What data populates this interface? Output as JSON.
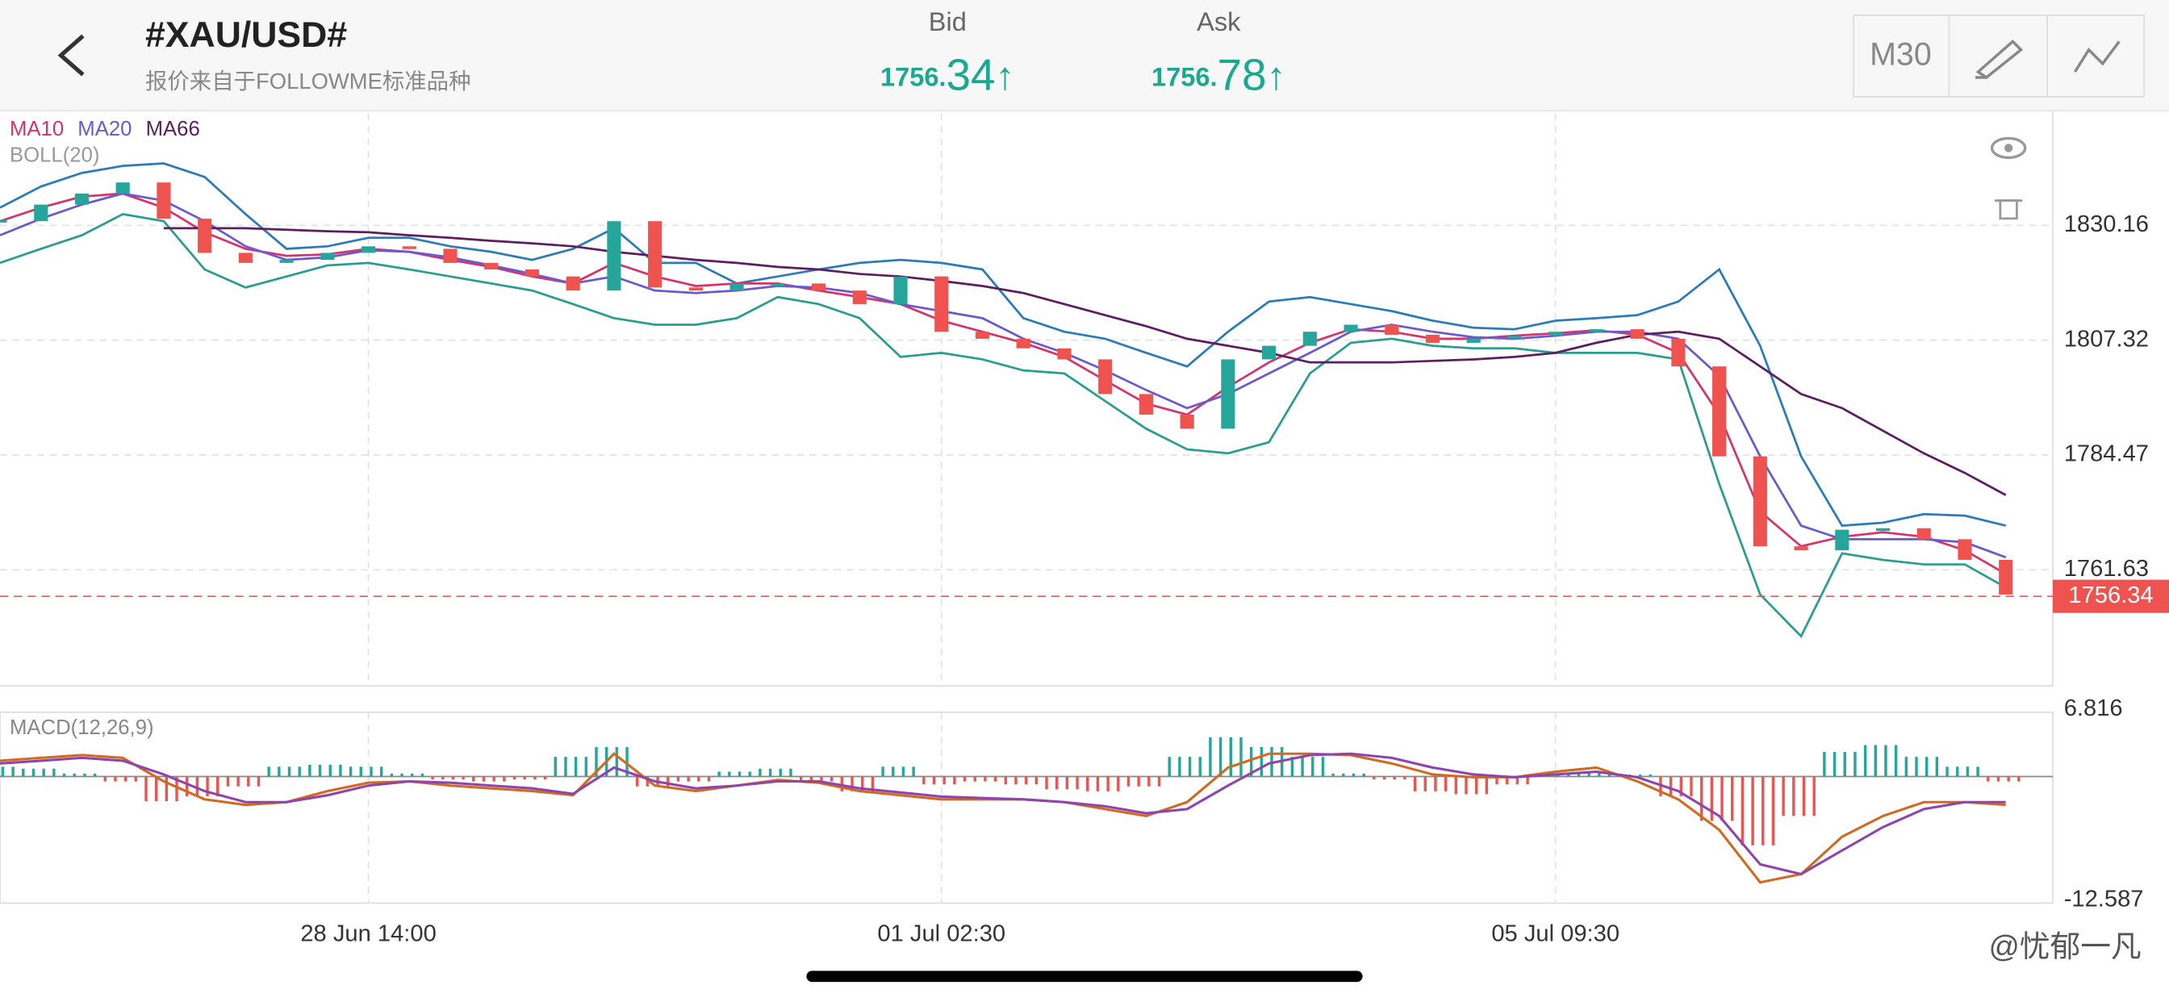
{
  "header": {
    "symbol": "#XAU/USD#",
    "subtitle": "报价来自于FOLLOWME标准品种",
    "bid": {
      "label": "Bid",
      "price_head": "1756.",
      "price_tail": "34",
      "arrow": "↑"
    },
    "ask": {
      "label": "Ask",
      "price_head": "1756.",
      "price_tail": "78",
      "arrow": "↑"
    },
    "timeframe": "M30"
  },
  "watermark": "@忧郁一凡",
  "chart_data": [
    {
      "type": "candlestick",
      "up_color": "#26a69a",
      "down_color": "#ef5350",
      "values": [
        1831.0,
        1834.3,
        1836.5,
        1838.7,
        1831.5,
        1824.7,
        1822.7,
        1823.3,
        1824.7,
        1826.0,
        1825.5,
        1822.7,
        1821.4,
        1820.0,
        1817.2,
        1831.0,
        1817.8,
        1817.2,
        1818.6,
        1818.6,
        1817.2,
        1814.5,
        1820.0,
        1809.0,
        1807.6,
        1805.7,
        1803.5,
        1796.6,
        1792.5,
        1789.7,
        1803.5,
        1806.2,
        1809.0,
        1810.4,
        1808.4,
        1806.8,
        1807.6,
        1808.2,
        1809.0,
        1809.5,
        1807.6,
        1802.1,
        1784.2,
        1766.3,
        1765.5,
        1769.6,
        1769.9,
        1767.7,
        1763.6,
        1756.7
      ],
      "series": [
        {
          "name": "MA10",
          "color": "#d6336c",
          "values": [
            1831.0,
            1833.7,
            1835.9,
            1836.5,
            1833.7,
            1828.8,
            1825.5,
            1824.1,
            1824.4,
            1825.5,
            1824.9,
            1823.3,
            1821.9,
            1820.0,
            1818.6,
            1822.7,
            1820.0,
            1818.1,
            1818.6,
            1818.6,
            1817.2,
            1815.9,
            1814.5,
            1811.2,
            1809.0,
            1806.8,
            1804.0,
            1799.3,
            1794.7,
            1792.5,
            1798.0,
            1802.9,
            1806.8,
            1809.5,
            1809.0,
            1807.6,
            1807.6,
            1808.2,
            1808.7,
            1809.3,
            1808.4,
            1804.8,
            1792.5,
            1773.2,
            1766.3,
            1768.2,
            1769.1,
            1768.2,
            1765.5,
            1760.8
          ]
        },
        {
          "name": "MA20",
          "color": "#6a5acd",
          "values": [
            1828.2,
            1831.5,
            1834.3,
            1836.5,
            1835.1,
            1831.0,
            1826.0,
            1823.3,
            1823.8,
            1825.2,
            1824.9,
            1823.8,
            1822.2,
            1820.5,
            1818.6,
            1820.0,
            1817.2,
            1816.7,
            1817.2,
            1818.1,
            1817.8,
            1816.7,
            1814.5,
            1813.1,
            1811.7,
            1807.6,
            1804.8,
            1801.3,
            1797.4,
            1793.8,
            1796.6,
            1800.7,
            1804.8,
            1809.0,
            1810.4,
            1809.0,
            1807.9,
            1807.6,
            1808.2,
            1809.0,
            1809.0,
            1807.6,
            1800.2,
            1784.2,
            1770.4,
            1767.7,
            1767.7,
            1767.7,
            1767.1,
            1764.1
          ]
        },
        {
          "name": "MA66",
          "color": "#5b1e5e",
          "values": [
            null,
            null,
            null,
            null,
            1829.6,
            1829.6,
            1829.6,
            1829.3,
            1829.0,
            1828.8,
            1828.2,
            1827.7,
            1827.1,
            1826.6,
            1826.0,
            1824.9,
            1824.1,
            1823.3,
            1822.7,
            1821.9,
            1821.4,
            1820.5,
            1820.0,
            1819.1,
            1818.1,
            1816.7,
            1814.5,
            1812.3,
            1810.1,
            1807.6,
            1806.2,
            1804.8,
            1802.9,
            1802.9,
            1802.9,
            1803.2,
            1803.5,
            1804.0,
            1804.8,
            1806.8,
            1808.4,
            1809.0,
            1807.6,
            1802.1,
            1796.6,
            1793.8,
            1789.3,
            1784.8,
            1780.9,
            1776.5
          ]
        }
      ],
      "bands": {
        "name": "BOLL(20)",
        "color": "#999999",
        "upper_color": "#2b7bb9",
        "lower_color": "#2a9d8f",
        "upper": [
          1833.7,
          1837.9,
          1840.6,
          1842.0,
          1842.5,
          1839.8,
          1832.4,
          1825.5,
          1826.0,
          1827.7,
          1827.7,
          1826.0,
          1824.9,
          1823.3,
          1825.5,
          1829.6,
          1822.7,
          1822.7,
          1818.6,
          1820.0,
          1821.4,
          1822.7,
          1823.3,
          1822.7,
          1821.4,
          1811.7,
          1809.0,
          1807.6,
          1804.8,
          1802.1,
          1809.0,
          1815.0,
          1815.9,
          1814.5,
          1813.1,
          1811.2,
          1809.8,
          1809.5,
          1811.2,
          1811.7,
          1812.3,
          1815.0,
          1821.4,
          1806.2,
          1784.2,
          1770.4,
          1771.0,
          1772.7,
          1772.4,
          1770.4
        ],
        "lower": [
          1822.7,
          1825.5,
          1828.2,
          1832.4,
          1831.0,
          1821.4,
          1817.8,
          1820.0,
          1822.2,
          1822.7,
          1821.4,
          1820.0,
          1818.6,
          1817.2,
          1814.5,
          1811.7,
          1810.4,
          1810.4,
          1811.7,
          1815.9,
          1814.5,
          1811.7,
          1804.0,
          1804.8,
          1803.5,
          1801.3,
          1800.7,
          1795.2,
          1789.7,
          1785.6,
          1784.8,
          1787.0,
          1800.7,
          1806.8,
          1807.6,
          1806.2,
          1805.7,
          1805.7,
          1804.8,
          1804.8,
          1804.8,
          1803.5,
          1778.7,
          1756.7,
          1748.4,
          1764.9,
          1763.6,
          1762.7,
          1762.7,
          1758.1
        ]
      },
      "current_price": 1756.34,
      "current_color": "#ef5350",
      "ylim": [
        1738.5,
        1852.45
      ],
      "yticks": [
        1761.63,
        1784.47,
        1807.32,
        1830.16
      ],
      "grid": true
    },
    {
      "type": "macd",
      "title": "MACD(12,26,9)",
      "up_color": "#26a69a",
      "down_color": "#ef5350",
      "categories": [
        null,
        null,
        null,
        null,
        null,
        null,
        null,
        null,
        null,
        "28 Jun 14:00",
        null,
        null,
        null,
        null,
        null,
        null,
        null,
        null,
        null,
        null,
        null,
        null,
        null,
        "01 Jul 02:30",
        null,
        null,
        null,
        null,
        null,
        null,
        null,
        null,
        null,
        null,
        null,
        null,
        null,
        null,
        "05 Jul 09:30",
        null,
        null,
        null,
        null,
        null,
        null,
        null,
        null,
        null,
        null,
        null
      ],
      "histogram": [
        1.0,
        0.8,
        0.3,
        -0.5,
        -2.5,
        -2.0,
        -1.0,
        1.0,
        1.2,
        1.0,
        0.3,
        -0.3,
        -0.5,
        -0.3,
        2.0,
        3.0,
        -1.0,
        -0.5,
        0.5,
        0.8,
        -0.5,
        -1.5,
        1.0,
        -0.8,
        -0.5,
        -0.8,
        -1.3,
        -1.5,
        -1.0,
        2.0,
        4.0,
        3.0,
        2.0,
        0.3,
        -0.3,
        -1.5,
        -1.8,
        -0.8,
        0.3,
        0.5,
        0.2,
        -2.0,
        -4.5,
        -7.0,
        -4.0,
        2.5,
        3.2,
        2.0,
        1.0,
        -0.5
      ],
      "series": [
        {
          "color": "#d2691e",
          "values": [
            1.61,
            1.9,
            2.18,
            1.9,
            -0.49,
            -2.32,
            -2.88,
            -2.6,
            -1.48,
            -0.63,
            -0.49,
            -0.92,
            -1.2,
            -1.48,
            -1.9,
            2.32,
            -0.92,
            -1.48,
            -0.92,
            -0.35,
            -0.63,
            -1.48,
            -1.9,
            -2.32,
            -2.32,
            -2.32,
            -2.6,
            -3.31,
            -4.01,
            -2.6,
            0.91,
            2.32,
            2.32,
            2.18,
            1.33,
            0.21,
            -0.07,
            -0.07,
            0.49,
            0.91,
            -0.49,
            -2.32,
            -5.42,
            -10.76,
            -9.92,
            -6.12,
            -4.01,
            -2.6,
            -2.6,
            -2.88
          ]
        },
        {
          "color": "#8e44ad",
          "values": [
            1.33,
            1.61,
            1.9,
            1.61,
            0.21,
            -1.48,
            -2.6,
            -2.6,
            -1.9,
            -0.92,
            -0.49,
            -0.63,
            -0.92,
            -1.2,
            -1.76,
            0.91,
            -0.49,
            -1.2,
            -0.92,
            -0.49,
            -0.49,
            -1.2,
            -1.62,
            -2.04,
            -2.18,
            -2.32,
            -2.6,
            -3.02,
            -3.73,
            -3.31,
            -0.92,
            1.33,
            2.18,
            2.32,
            1.9,
            0.91,
            0.21,
            -0.07,
            0.21,
            0.49,
            -0.07,
            -1.48,
            -4.01,
            -8.93,
            -9.92,
            -7.52,
            -5.14,
            -3.31,
            -2.6,
            -2.6
          ]
        }
      ],
      "ylim": [
        -12.587,
        6.816
      ],
      "yticks": [
        6.816,
        -12.587
      ]
    }
  ]
}
